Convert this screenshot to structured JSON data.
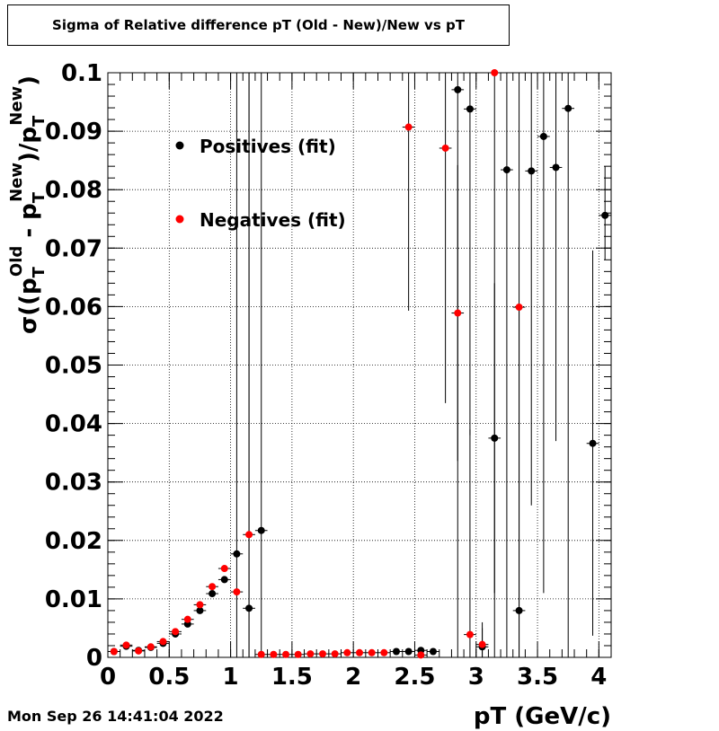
{
  "title": "Sigma of Relative difference pT (Old - New)/New vs pT",
  "timestamp": "Mon Sep 26 14:41:04 2022",
  "chart_data": {
    "type": "scatter",
    "xlabel": "pT (GeV/c)",
    "ylabel": {
      "sigma": "σ",
      "open": "((p",
      "sub1": "T",
      "sup1": "Old",
      "mid": " - p",
      "sub2": "T",
      "sup2": "New",
      "mid2": ")/p",
      "sub3": "T",
      "sup3": "New",
      "close": ")"
    },
    "xlim": [
      0,
      4.1
    ],
    "ylim": [
      0,
      0.1
    ],
    "xticks": [
      {
        "value": 0,
        "label": "0"
      },
      {
        "value": 0.5,
        "label": "0.5"
      },
      {
        "value": 1,
        "label": "1"
      },
      {
        "value": 1.5,
        "label": "1.5"
      },
      {
        "value": 2,
        "label": "2"
      },
      {
        "value": 2.5,
        "label": "2.5"
      },
      {
        "value": 3,
        "label": "3"
      },
      {
        "value": 3.5,
        "label": "3.5"
      },
      {
        "value": 4,
        "label": "4"
      }
    ],
    "yticks": [
      {
        "value": 0,
        "label": "0"
      },
      {
        "value": 0.01,
        "label": "0.01"
      },
      {
        "value": 0.02,
        "label": "0.02"
      },
      {
        "value": 0.03,
        "label": "0.03"
      },
      {
        "value": 0.04,
        "label": "0.04"
      },
      {
        "value": 0.05,
        "label": "0.05"
      },
      {
        "value": 0.06,
        "label": "0.06"
      },
      {
        "value": 0.07,
        "label": "0.07"
      },
      {
        "value": 0.08,
        "label": "0.08"
      },
      {
        "value": 0.09,
        "label": "0.09"
      },
      {
        "value": 0.1,
        "label": "0.1"
      }
    ],
    "grid": true,
    "legend_position": "top-left",
    "series": [
      {
        "name": "Positives (fit)",
        "color": "#000000",
        "points": [
          {
            "x": 0.05,
            "y": 0.001,
            "ylo": 0.0008,
            "yhi": 0.0012
          },
          {
            "x": 0.15,
            "y": 0.0019,
            "ylo": 0.0017,
            "yhi": 0.0021
          },
          {
            "x": 0.25,
            "y": 0.0012,
            "ylo": 0.001,
            "yhi": 0.0014
          },
          {
            "x": 0.35,
            "y": 0.0017,
            "ylo": 0.0015,
            "yhi": 0.0019
          },
          {
            "x": 0.45,
            "y": 0.0024,
            "ylo": 0.0022,
            "yhi": 0.0026
          },
          {
            "x": 0.55,
            "y": 0.004,
            "ylo": 0.0037,
            "yhi": 0.0043
          },
          {
            "x": 0.65,
            "y": 0.0057,
            "ylo": 0.0054,
            "yhi": 0.006
          },
          {
            "x": 0.75,
            "y": 0.008,
            "ylo": 0.0076,
            "yhi": 0.0084
          },
          {
            "x": 0.85,
            "y": 0.0109,
            "ylo": 0.0105,
            "yhi": 0.0113
          },
          {
            "x": 0.95,
            "y": 0.0133,
            "ylo": 0.0128,
            "yhi": 0.0138
          },
          {
            "x": 1.05,
            "y": 0.0177,
            "ylo": 0.0,
            "yhi": 0.1
          },
          {
            "x": 1.15,
            "y": 0.0084,
            "ylo": 0.0,
            "yhi": 0.1
          },
          {
            "x": 1.25,
            "y": 0.0217,
            "ylo": 0.0,
            "yhi": 0.1
          },
          {
            "x": 2.35,
            "y": 0.001,
            "ylo": 0.0008,
            "yhi": 0.0012
          },
          {
            "x": 2.45,
            "y": 0.001,
            "ylo": 0.0008,
            "yhi": 0.0012
          },
          {
            "x": 2.55,
            "y": 0.0012,
            "ylo": 0.0008,
            "yhi": 0.0016
          },
          {
            "x": 2.65,
            "y": 0.001,
            "ylo": 0.0007,
            "yhi": 0.0013
          },
          {
            "x": 2.85,
            "y": 0.0971,
            "ylo": 0.0,
            "yhi": 0.1
          },
          {
            "x": 2.95,
            "y": 0.0938,
            "ylo": 0.038,
            "yhi": 0.1
          },
          {
            "x": 3.05,
            "y": 0.0018,
            "ylo": 0.0,
            "yhi": 0.005
          },
          {
            "x": 3.15,
            "y": 0.0375,
            "ylo": 0.011,
            "yhi": 0.064
          },
          {
            "x": 3.25,
            "y": 0.0834,
            "ylo": 0.0,
            "yhi": 0.1
          },
          {
            "x": 3.35,
            "y": 0.008,
            "ylo": 0.0,
            "yhi": 0.06
          },
          {
            "x": 3.45,
            "y": 0.0832,
            "ylo": 0.026,
            "yhi": 0.1
          },
          {
            "x": 3.55,
            "y": 0.0891,
            "ylo": 0.011,
            "yhi": 0.1
          },
          {
            "x": 3.65,
            "y": 0.0838,
            "ylo": 0.037,
            "yhi": 0.1
          },
          {
            "x": 3.75,
            "y": 0.0939,
            "ylo": 0.0,
            "yhi": 0.1
          },
          {
            "x": 3.95,
            "y": 0.0366,
            "ylo": 0.0037,
            "yhi": 0.0696
          },
          {
            "x": 4.05,
            "y": 0.0756,
            "ylo": 0.068,
            "yhi": 0.084
          }
        ]
      },
      {
        "name": "Negatives (fit)",
        "color": "#ff0000",
        "points": [
          {
            "x": 0.05,
            "y": 0.001,
            "ylo": 0.0008,
            "yhi": 0.0012
          },
          {
            "x": 0.15,
            "y": 0.0021,
            "ylo": 0.0019,
            "yhi": 0.0023
          },
          {
            "x": 0.25,
            "y": 0.0011,
            "ylo": 0.0009,
            "yhi": 0.0013
          },
          {
            "x": 0.35,
            "y": 0.0018,
            "ylo": 0.0016,
            "yhi": 0.002
          },
          {
            "x": 0.45,
            "y": 0.0027,
            "ylo": 0.0025,
            "yhi": 0.0029
          },
          {
            "x": 0.55,
            "y": 0.0044,
            "ylo": 0.0041,
            "yhi": 0.0047
          },
          {
            "x": 0.65,
            "y": 0.0065,
            "ylo": 0.0062,
            "yhi": 0.0068
          },
          {
            "x": 0.75,
            "y": 0.009,
            "ylo": 0.0086,
            "yhi": 0.0094
          },
          {
            "x": 0.85,
            "y": 0.0121,
            "ylo": 0.0117,
            "yhi": 0.0125
          },
          {
            "x": 0.95,
            "y": 0.0152,
            "ylo": 0.0147,
            "yhi": 0.0157
          },
          {
            "x": 1.05,
            "y": 0.0112,
            "ylo": 0.0108,
            "yhi": 0.0116
          },
          {
            "x": 1.15,
            "y": 0.021,
            "ylo": 0.0,
            "yhi": 0.1
          },
          {
            "x": 1.25,
            "y": 0.0005,
            "ylo": 0.0003,
            "yhi": 0.0007
          },
          {
            "x": 1.35,
            "y": 0.0005,
            "ylo": 0.0003,
            "yhi": 0.0007
          },
          {
            "x": 1.45,
            "y": 0.0005,
            "ylo": 0.0003,
            "yhi": 0.0007
          },
          {
            "x": 1.55,
            "y": 0.0005,
            "ylo": 0.0003,
            "yhi": 0.0007
          },
          {
            "x": 1.65,
            "y": 0.0006,
            "ylo": 0.0004,
            "yhi": 0.0008
          },
          {
            "x": 1.75,
            "y": 0.0006,
            "ylo": 0.0004,
            "yhi": 0.0008
          },
          {
            "x": 1.85,
            "y": 0.0006,
            "ylo": 0.0004,
            "yhi": 0.0008
          },
          {
            "x": 1.95,
            "y": 0.0008,
            "ylo": 0.0006,
            "yhi": 0.001
          },
          {
            "x": 2.05,
            "y": 0.0008,
            "ylo": 0.0006,
            "yhi": 0.001
          },
          {
            "x": 2.15,
            "y": 0.0008,
            "ylo": 0.0006,
            "yhi": 0.001
          },
          {
            "x": 2.25,
            "y": 0.0008,
            "ylo": 0.0006,
            "yhi": 0.001
          },
          {
            "x": 2.45,
            "y": 0.0907,
            "ylo": 0.0593,
            "yhi": 0.1
          },
          {
            "x": 2.55,
            "y": 0.0004,
            "ylo": 0.0002,
            "yhi": 0.0006
          },
          {
            "x": 2.75,
            "y": 0.0871,
            "ylo": 0.0435,
            "yhi": 0.1
          },
          {
            "x": 2.85,
            "y": 0.0589,
            "ylo": 0.0336,
            "yhi": 0.0842
          },
          {
            "x": 2.95,
            "y": 0.0039,
            "ylo": 0.0,
            "yhi": 0.039
          },
          {
            "x": 3.05,
            "y": 0.0022,
            "ylo": 0.0,
            "yhi": 0.006
          },
          {
            "x": 3.15,
            "y": 0.1,
            "ylo": 0.0,
            "yhi": 0.1
          },
          {
            "x": 3.35,
            "y": 0.0599,
            "ylo": 0.0,
            "yhi": 0.1
          }
        ]
      }
    ]
  }
}
